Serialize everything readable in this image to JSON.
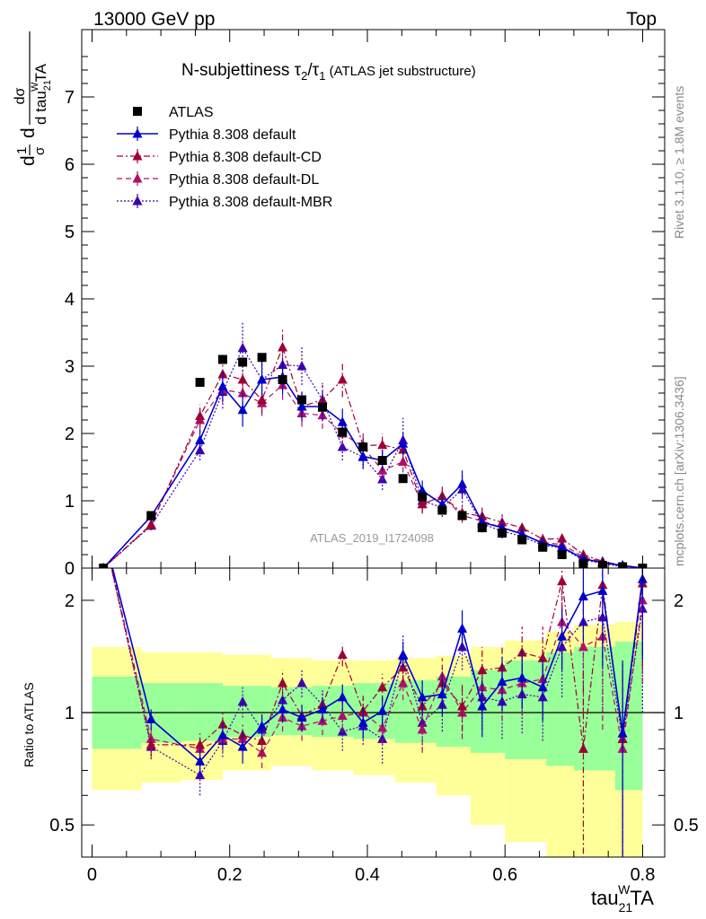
{
  "header": {
    "left": "13000 GeV pp",
    "right": "Top"
  },
  "side_labels": {
    "rivet": "Rivet 3.1.10, ≥ 1.8M events",
    "mcplots": "mcplots.cern.ch [arXiv:1306.3436]"
  },
  "watermark": "ATLAS_2019_I1724098",
  "title": {
    "main": "N-subjettiness τ",
    "sub1": "2",
    "slash": "/τ",
    "sub2": "1",
    "paren": " (ATLAS jet substructure)"
  },
  "axes": {
    "ylabel_main_dsigma": "dσ",
    "ylabel_main_denom": "d tau",
    "ylabel_main_sup": "W",
    "ylabel_main_sub": "21",
    "ylabel_main_ta": "TA",
    "ylabel_main_prefix_num": "1",
    "ylabel_main_prefix_den": "σ",
    "ylabel_main_d": "d",
    "ylabel_ratio": "Ratio to ATLAS",
    "xlabel_tau": "tau",
    "xlabel_sup": "W",
    "xlabel_sub": "21",
    "xlabel_ta": "TA"
  },
  "colors": {
    "data": "#000000",
    "default": "#0000cc",
    "cd": "#9e0033",
    "dl": "#b0106a",
    "mbr": "#3d00b0",
    "band_inner": "#99ff99",
    "band_outer": "#ffff99"
  },
  "chart_data": {
    "type": "line",
    "x": [
      0.0165,
      0.0858,
      0.1568,
      0.1898,
      0.2188,
      0.2468,
      0.2768,
      0.3048,
      0.3348,
      0.3638,
      0.3938,
      0.4218,
      0.4518,
      0.4798,
      0.5088,
      0.5378,
      0.5668,
      0.5958,
      0.6248,
      0.6548,
      0.6828,
      0.7138,
      0.7418,
      0.7708,
      0.7998
    ],
    "xlim": [
      -0.015,
      0.832
    ],
    "main": {
      "ylim": [
        0,
        8.0
      ],
      "yticks": [
        0,
        1,
        2,
        3,
        4,
        5,
        6,
        7
      ],
      "xticks": [
        0,
        0.2,
        0.4,
        0.6,
        0.8
      ],
      "legend_position": "top-left",
      "series": [
        {
          "name": "ATLAS",
          "style": "data",
          "values": [
            0.0,
            0.78,
            2.76,
            3.1,
            3.06,
            3.13,
            2.8,
            2.5,
            2.39,
            2.02,
            1.8,
            1.6,
            1.33,
            1.06,
            0.86,
            0.78,
            0.6,
            0.52,
            0.42,
            0.31,
            0.2,
            0.07,
            0.04,
            0.02,
            0.0
          ]
        },
        {
          "name": "Pythia 8.308 default",
          "style": "solid",
          "values": [
            0.0,
            0.77,
            1.9,
            2.7,
            2.35,
            2.8,
            2.84,
            2.4,
            2.4,
            2.17,
            1.66,
            1.6,
            1.85,
            1.15,
            0.95,
            1.25,
            0.68,
            0.6,
            0.51,
            0.37,
            0.31,
            0.14,
            0.08,
            0.04,
            0.0
          ],
          "errors": [
            0.0,
            0.07,
            0.15,
            0.22,
            0.25,
            0.26,
            0.26,
            0.22,
            0.22,
            0.2,
            0.18,
            0.16,
            0.17,
            0.15,
            0.14,
            0.2,
            0.14,
            0.12,
            0.1,
            0.08,
            0.08,
            0.05,
            0.04,
            0.03,
            0.0
          ]
        },
        {
          "name": "Pythia 8.308 default-CD",
          "style": "dashdot",
          "values": [
            0.0,
            0.64,
            2.26,
            2.88,
            2.8,
            2.5,
            3.28,
            2.4,
            2.5,
            2.8,
            1.82,
            1.83,
            1.76,
            0.95,
            1.07,
            0.82,
            0.77,
            0.68,
            0.6,
            0.43,
            0.44,
            0.2,
            0.1,
            0.04,
            0.0
          ],
          "errors": [
            0.0,
            0.07,
            0.17,
            0.22,
            0.22,
            0.2,
            0.3,
            0.22,
            0.22,
            0.26,
            0.18,
            0.17,
            0.17,
            0.14,
            0.14,
            0.12,
            0.13,
            0.12,
            0.1,
            0.09,
            0.1,
            0.06,
            0.05,
            0.03,
            0.0
          ]
        },
        {
          "name": "Pythia 8.308 default-DL",
          "style": "dashed",
          "values": [
            0.0,
            0.65,
            2.2,
            2.65,
            2.6,
            2.45,
            2.72,
            2.3,
            2.27,
            2.0,
            1.8,
            1.45,
            1.58,
            0.95,
            1.07,
            0.78,
            0.7,
            0.6,
            0.5,
            0.38,
            0.35,
            0.17,
            0.09,
            0.03,
            0.0
          ],
          "errors": [
            0.0,
            0.07,
            0.17,
            0.2,
            0.2,
            0.19,
            0.22,
            0.2,
            0.2,
            0.18,
            0.17,
            0.15,
            0.16,
            0.13,
            0.13,
            0.11,
            0.11,
            0.1,
            0.09,
            0.08,
            0.08,
            0.06,
            0.04,
            0.03,
            0.0
          ]
        },
        {
          "name": "Pythia 8.308 default-MBR",
          "style": "dotted",
          "values": [
            0.0,
            0.63,
            1.75,
            2.62,
            3.27,
            2.8,
            3.02,
            3.0,
            2.5,
            1.8,
            1.65,
            1.32,
            1.9,
            1.0,
            0.9,
            1.17,
            0.66,
            0.55,
            0.47,
            0.34,
            0.3,
            0.12,
            0.07,
            0.02,
            0.0
          ],
          "errors": [
            0.0,
            0.07,
            0.15,
            0.25,
            0.4,
            0.28,
            0.3,
            0.28,
            0.25,
            0.2,
            0.18,
            0.16,
            0.33,
            0.15,
            0.14,
            0.2,
            0.13,
            0.11,
            0.1,
            0.08,
            0.08,
            0.05,
            0.04,
            0.03,
            0.0
          ]
        }
      ]
    },
    "ratio": {
      "ylim": [
        0.41,
        2.44
      ],
      "yticks": [
        0.5,
        1,
        2
      ],
      "scale": "log",
      "band_bins": [
        [
          0.0,
          0.072,
          0.8,
          1.25,
          0.62,
          1.5
        ],
        [
          0.072,
          0.13,
          0.83,
          1.2,
          0.65,
          1.45
        ],
        [
          0.13,
          0.19,
          0.84,
          1.2,
          0.66,
          1.45
        ],
        [
          0.19,
          0.26,
          0.86,
          1.18,
          0.7,
          1.43
        ],
        [
          0.26,
          0.32,
          0.87,
          1.17,
          0.72,
          1.4
        ],
        [
          0.32,
          0.38,
          0.86,
          1.18,
          0.7,
          1.38
        ],
        [
          0.38,
          0.44,
          0.85,
          1.2,
          0.68,
          1.38
        ],
        [
          0.44,
          0.5,
          0.83,
          1.22,
          0.65,
          1.4
        ],
        [
          0.5,
          0.55,
          0.81,
          1.25,
          0.6,
          1.42
        ],
        [
          0.55,
          0.6,
          0.78,
          1.3,
          0.5,
          1.5
        ],
        [
          0.6,
          0.66,
          0.75,
          1.38,
          0.45,
          1.56
        ],
        [
          0.66,
          0.7,
          0.72,
          1.45,
          0.4,
          1.65
        ],
        [
          0.7,
          0.76,
          0.7,
          1.5,
          0.4,
          1.72
        ],
        [
          0.76,
          0.8,
          0.62,
          1.55,
          0.4,
          1.75
        ]
      ],
      "series": [
        {
          "name": "Pythia 8.308 default",
          "values": [
            null,
            0.96,
            0.74,
            0.87,
            0.81,
            0.92,
            1.02,
            0.97,
            1.02,
            1.1,
            0.94,
            1.01,
            1.43,
            1.1,
            1.12,
            1.68,
            1.04,
            1.21,
            1.24,
            1.17,
            1.6,
            2.05,
            2.12,
            0.88,
            2.28
          ],
          "errors": [
            0.0,
            0.06,
            0.06,
            0.07,
            0.08,
            0.07,
            0.08,
            0.08,
            0.08,
            0.09,
            0.09,
            0.09,
            0.12,
            0.12,
            0.14,
            0.2,
            0.18,
            0.2,
            0.22,
            0.22,
            0.3,
            0.5,
            0.8,
            0.5,
            0.9
          ]
        },
        {
          "name": "Pythia 8.308 default-CD",
          "values": [
            null,
            0.82,
            0.82,
            0.93,
            0.87,
            0.84,
            1.2,
            0.98,
            1.05,
            1.43,
            1.01,
            1.17,
            1.32,
            1.04,
            1.2,
            1.04,
            1.3,
            1.32,
            1.45,
            1.4,
            2.25,
            0.8,
            2.2,
            0.85,
            2.22
          ],
          "errors": [
            0.0,
            0.06,
            0.06,
            0.07,
            0.07,
            0.07,
            0.1,
            0.08,
            0.08,
            0.1,
            0.1,
            0.1,
            0.12,
            0.13,
            0.15,
            0.15,
            0.2,
            0.2,
            0.25,
            0.3,
            0.5,
            0.5,
            0.8,
            0.5,
            0.9
          ]
        },
        {
          "name": "Pythia 8.308 default-DL",
          "values": [
            null,
            0.85,
            0.8,
            0.85,
            0.85,
            0.78,
            0.97,
            0.92,
            0.95,
            0.98,
            1.0,
            0.91,
            1.2,
            0.9,
            1.25,
            1.0,
            1.17,
            1.15,
            1.2,
            1.23,
            1.75,
            1.5,
            1.6,
            0.8,
            2.0
          ],
          "errors": [
            0.0,
            0.06,
            0.06,
            0.07,
            0.07,
            0.07,
            0.08,
            0.08,
            0.08,
            0.09,
            0.09,
            0.09,
            0.12,
            0.12,
            0.15,
            0.15,
            0.18,
            0.2,
            0.22,
            0.25,
            0.4,
            0.5,
            0.7,
            0.5,
            0.8
          ]
        },
        {
          "name": "Pythia 8.308 default-MBR",
          "values": [
            null,
            0.81,
            0.68,
            0.84,
            1.07,
            0.9,
            1.08,
            1.2,
            1.05,
            0.89,
            0.92,
            0.85,
            1.42,
            0.94,
            1.05,
            1.5,
            1.1,
            1.07,
            1.12,
            1.1,
            1.5,
            1.75,
            1.8,
            0.85,
            1.9
          ],
          "errors": [
            0.0,
            0.06,
            0.08,
            0.08,
            0.1,
            0.08,
            0.1,
            0.1,
            0.1,
            0.1,
            0.1,
            0.12,
            0.2,
            0.14,
            0.16,
            0.2,
            0.2,
            0.22,
            0.24,
            0.26,
            0.4,
            0.6,
            0.8,
            0.5,
            0.9
          ]
        }
      ]
    }
  }
}
